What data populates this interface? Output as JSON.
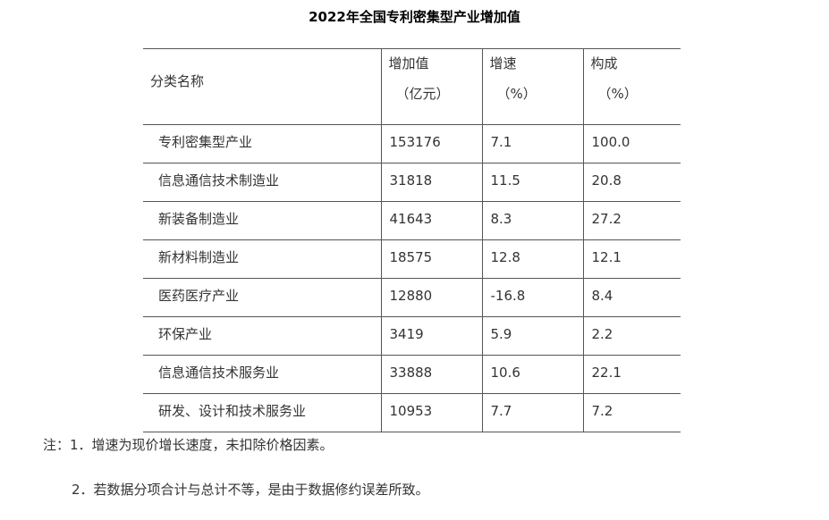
{
  "title": "2022年全国专利密集型产业增加值",
  "table": {
    "header": {
      "name": "分类名称",
      "value_line1": "增加值",
      "value_line2": "（亿元）",
      "growth_line1": "增速",
      "growth_line2": "（%）",
      "share_line1": "构成",
      "share_line2": "（%）"
    },
    "rows": [
      {
        "name": "专利密集型产业",
        "value": "153176",
        "growth": "7.1",
        "share": "100.0"
      },
      {
        "name": "信息通信技术制造业",
        "value": "31818",
        "growth": "11.5",
        "share": "20.8"
      },
      {
        "name": "新装备制造业",
        "value": "41643",
        "growth": "8.3",
        "share": "27.2"
      },
      {
        "name": "新材料制造业",
        "value": "18575",
        "growth": "12.8",
        "share": "12.1"
      },
      {
        "name": "医药医疗产业",
        "value": "12880",
        "growth": "-16.8",
        "share": "8.4"
      },
      {
        "name": "环保产业",
        "value": "3419",
        "growth": "5.9",
        "share": "2.2"
      },
      {
        "name": "信息通信技术服务业",
        "value": "33888",
        "growth": "10.6",
        "share": "22.1"
      },
      {
        "name": "研发、设计和技术服务业",
        "value": "10953",
        "growth": "7.7",
        "share": "7.2"
      }
    ]
  },
  "notes": {
    "note1": "注：1．增速为现价增长速度，未扣除价格因素。",
    "note2": "2．若数据分项合计与总计不等，是由于数据修约误差所致。"
  }
}
